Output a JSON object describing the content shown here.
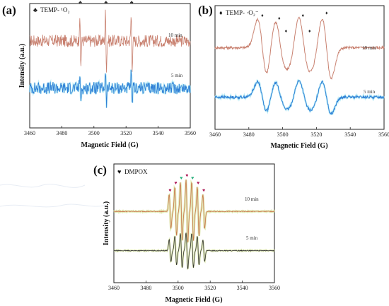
{
  "colors": {
    "red_trace": "#c8806f",
    "blue_trace": "#2e7fd6",
    "blue_glow": "#a8e8f4",
    "black_trace": "#333333",
    "orange_trace": "#c8744a",
    "orange_glow": "#d9e6a0",
    "peak_dark": "#2b2b2b",
    "peak_magenta": "#b01f5a",
    "peak_green": "#2bb07d",
    "legend_mark": "#444444",
    "frame": "#222222"
  },
  "chart_data": [
    {
      "panel_label": "(a)",
      "type": "line",
      "legend": {
        "symbol": "♣",
        "label": "TEMP- ¹O₂",
        "placement": "top-left"
      },
      "xlabel": "Magnetic Field (G)",
      "ylabel": "Intensity (a.u.)",
      "xlim": [
        3460,
        3560
      ],
      "x_ticks": [
        3460,
        3480,
        3500,
        3520,
        3540,
        3560
      ],
      "y_ticks": false,
      "peak_positions": [
        3491.5,
        3507.5,
        3523.5
      ],
      "peak_marker": "♣",
      "series": [
        {
          "name": "10 min",
          "color": "red_trace",
          "offset": 0.7,
          "noise": 0.07,
          "amplitudes": [
            0.3,
            0.32,
            0.3
          ]
        },
        {
          "name": "5 min",
          "color": "blue_trace",
          "offset": 0.32,
          "noise": 0.07,
          "amplitudes": [
            0.16,
            0.18,
            0.16
          ]
        }
      ]
    },
    {
      "panel_label": "(b)",
      "type": "line",
      "legend": {
        "symbol": "♦",
        "label": "TEMP- ·O₂⁻",
        "placement": "top-left"
      },
      "xlabel": "Magnetic Field (G)",
      "ylabel": "",
      "xlim": [
        3460,
        3560
      ],
      "x_ticks": [
        3460,
        3480,
        3500,
        3520,
        3540,
        3560
      ],
      "y_ticks": false,
      "peak_marker": "♦",
      "peak_positions": [
        3488,
        3498,
        3502,
        3512,
        3516,
        3526
      ],
      "series": [
        {
          "name": "10 min",
          "color": "red_trace",
          "offset": 0.66,
          "noise": 0.015,
          "amplitudes": [
            0.22,
            0.2,
            0.1,
            0.22,
            0.1,
            0.24
          ]
        },
        {
          "name": "5 min",
          "color": "blue_trace",
          "offset": 0.26,
          "noise": 0.015,
          "amplitudes": [
            0.12,
            0.11,
            0.06,
            0.12,
            0.06,
            0.13
          ]
        }
      ]
    },
    {
      "panel_label": "(c)",
      "type": "line",
      "legend": {
        "symbol": "♥",
        "label": "DMPOX",
        "placement": "top-left"
      },
      "xlabel": "Magnetic Field (G)",
      "ylabel": "Intensity (a.u.)",
      "xlim": [
        3460,
        3560
      ],
      "x_ticks": [
        3460,
        3480,
        3500,
        3520,
        3540,
        3560
      ],
      "y_ticks": false,
      "peak_marker": "♥",
      "peak_positions": [
        3495,
        3498.5,
        3502,
        3505.5,
        3509,
        3512.5,
        3516
      ],
      "series": [
        {
          "name": "10 min",
          "color": "orange_trace",
          "offset": 0.6,
          "noise": 0.005,
          "amplitudes": [
            0.14,
            0.2,
            0.24,
            0.26,
            0.24,
            0.2,
            0.14
          ]
        },
        {
          "name": "5 min",
          "color": "black_trace",
          "offset": 0.27,
          "noise": 0.005,
          "amplitudes": [
            0.09,
            0.12,
            0.14,
            0.15,
            0.14,
            0.12,
            0.09
          ]
        }
      ]
    }
  ]
}
